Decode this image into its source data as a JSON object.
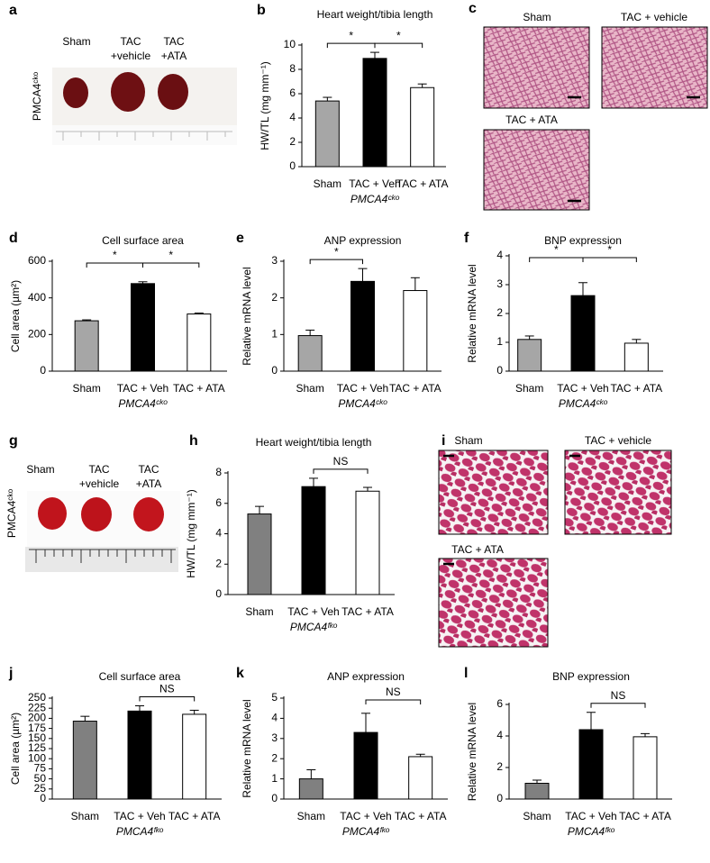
{
  "panels_photo": [
    {
      "panel": "a",
      "row_label": "PMCA4ᶜᵏᵒ",
      "labels": [
        [
          "Sham"
        ],
        [
          "TAC",
          "+vehicle"
        ],
        [
          "TAC",
          "+ATA"
        ]
      ]
    },
    {
      "panel": "g",
      "row_label": "PMCA4ᶜᵏᵒ",
      "labels": [
        [
          "Sham"
        ],
        [
          "TAC",
          "+vehicle"
        ],
        [
          "TAC",
          "+ATA"
        ]
      ]
    }
  ],
  "panels_histology": [
    {
      "panel": "c",
      "labels": [
        "Sham",
        "TAC + vehicle",
        "TAC + ATA"
      ]
    },
    {
      "panel": "i",
      "labels": [
        "Sham",
        "TAC + vehicle",
        "TAC + ATA"
      ]
    }
  ],
  "chart_data": [
    {
      "type": "bar",
      "panel": "b",
      "title": "Heart weight/tibia length",
      "y_label": "HW/TL (mg mm⁻¹)",
      "x_label": "PMCA4ᶜᵏᵒ",
      "categories": [
        "Sham",
        "TAC + Veh",
        "TAC + ATA"
      ],
      "values": [
        5.4,
        8.9,
        6.5
      ],
      "errors": [
        0.3,
        0.5,
        0.3
      ],
      "colors": [
        "#a6a6a6",
        "#000000",
        "#ffffff"
      ],
      "ylim": [
        0,
        10
      ],
      "yticks": [
        0,
        2,
        4,
        6,
        8,
        10
      ],
      "comparisons": [
        {
          "label": "*",
          "pair": [
            0,
            1
          ]
        },
        {
          "label": "*",
          "pair": [
            1,
            2
          ]
        }
      ]
    },
    {
      "type": "bar",
      "panel": "d",
      "title": "Cell surface area",
      "y_label": "Cell area (µm²)",
      "x_label": "PMCA4ᶜᵏᵒ",
      "categories": [
        "Sham",
        "TAC + Veh",
        "TAC + ATA"
      ],
      "values": [
        275,
        478,
        312
      ],
      "errors": [
        5,
        10,
        5
      ],
      "colors": [
        "#a6a6a6",
        "#000000",
        "#ffffff"
      ],
      "ylim": [
        0,
        600
      ],
      "yticks": [
        0,
        200,
        400,
        600
      ],
      "comparisons": [
        {
          "label": "*",
          "pair": [
            0,
            1
          ]
        },
        {
          "label": "*",
          "pair": [
            1,
            2
          ]
        }
      ]
    },
    {
      "type": "bar",
      "panel": "e",
      "title": "ANP expression",
      "y_label": "Relative mRNA level",
      "x_label": "PMCA4ᶜᵏᵒ",
      "categories": [
        "Sham",
        "TAC + Veh",
        "TAC + ATA"
      ],
      "values": [
        0.97,
        2.45,
        2.2
      ],
      "errors": [
        0.15,
        0.35,
        0.35
      ],
      "colors": [
        "#a6a6a6",
        "#000000",
        "#ffffff"
      ],
      "ylim": [
        0,
        3
      ],
      "yticks": [
        0,
        1,
        2,
        3
      ],
      "comparisons": [
        {
          "label": "*",
          "pair": [
            0,
            1
          ]
        }
      ]
    },
    {
      "type": "bar",
      "panel": "f",
      "title": "BNP expression",
      "y_label": "Relative mRNA level",
      "x_label": "PMCA4ᶜᵏᵒ",
      "categories": [
        "Sham",
        "TAC + Veh",
        "TAC + ATA"
      ],
      "values": [
        1.1,
        2.62,
        0.97
      ],
      "errors": [
        0.12,
        0.45,
        0.13
      ],
      "colors": [
        "#a6a6a6",
        "#000000",
        "#ffffff"
      ],
      "ylim": [
        0,
        4
      ],
      "yticks": [
        0,
        1,
        2,
        3,
        4
      ],
      "comparisons": [
        {
          "label": "*",
          "pair": [
            0,
            1
          ]
        },
        {
          "label": "*",
          "pair": [
            1,
            2
          ]
        }
      ]
    },
    {
      "type": "bar",
      "panel": "h",
      "title": "Heart weight/tibia length",
      "y_label": "HW/TL (mg mm⁻¹)",
      "x_label": "PMCA4ᶠᵏᵒ",
      "categories": [
        "Sham",
        "TAC + Veh",
        "TAC + ATA"
      ],
      "values": [
        5.3,
        7.1,
        6.8
      ],
      "errors": [
        0.5,
        0.55,
        0.25
      ],
      "colors": [
        "#808080",
        "#000000",
        "#ffffff"
      ],
      "ylim": [
        0,
        8
      ],
      "yticks": [
        0,
        2,
        4,
        6,
        8
      ],
      "comparisons": [
        {
          "label": "NS",
          "pair": [
            1,
            2
          ]
        }
      ]
    },
    {
      "type": "bar",
      "panel": "j",
      "title": "Cell surface area",
      "y_label": "Cell area (µm²)",
      "x_label": "PMCA4ᶠᵏᵒ",
      "categories": [
        "Sham",
        "TAC + Veh",
        "TAC + ATA"
      ],
      "values": [
        193,
        218,
        210
      ],
      "errors": [
        12,
        13,
        10
      ],
      "colors": [
        "#808080",
        "#000000",
        "#ffffff"
      ],
      "ylim": [
        0,
        250
      ],
      "yticks": [
        0,
        25,
        50,
        75,
        100,
        125,
        150,
        175,
        200,
        225,
        250
      ],
      "comparisons": [
        {
          "label": "NS",
          "pair": [
            1,
            2
          ]
        }
      ]
    },
    {
      "type": "bar",
      "panel": "k",
      "title": "ANP expression",
      "y_label": "Relative mRNA level",
      "x_label": "PMCA4ᶠᵏᵒ",
      "categories": [
        "Sham",
        "TAC + Veh",
        "TAC + ATA"
      ],
      "values": [
        1.0,
        3.3,
        2.1
      ],
      "errors": [
        0.45,
        0.95,
        0.12
      ],
      "colors": [
        "#808080",
        "#000000",
        "#ffffff"
      ],
      "ylim": [
        0,
        5
      ],
      "yticks": [
        0,
        1,
        2,
        3,
        4,
        5
      ],
      "comparisons": [
        {
          "label": "NS",
          "pair": [
            1,
            2
          ]
        }
      ]
    },
    {
      "type": "bar",
      "panel": "l",
      "title": "BNP expression",
      "y_label": "Relative mRNA level",
      "x_label": "PMCA4ᶠᵏᵒ",
      "categories": [
        "Sham",
        "TAC + Veh",
        "TAC + ATA"
      ],
      "values": [
        1.0,
        4.4,
        3.95
      ],
      "errors": [
        0.2,
        1.1,
        0.2
      ],
      "colors": [
        "#808080",
        "#000000",
        "#ffffff"
      ],
      "ylim": [
        0,
        6
      ],
      "yticks": [
        0,
        2,
        4,
        6
      ],
      "comparisons": [
        {
          "label": "NS",
          "pair": [
            1,
            2
          ]
        }
      ]
    }
  ]
}
